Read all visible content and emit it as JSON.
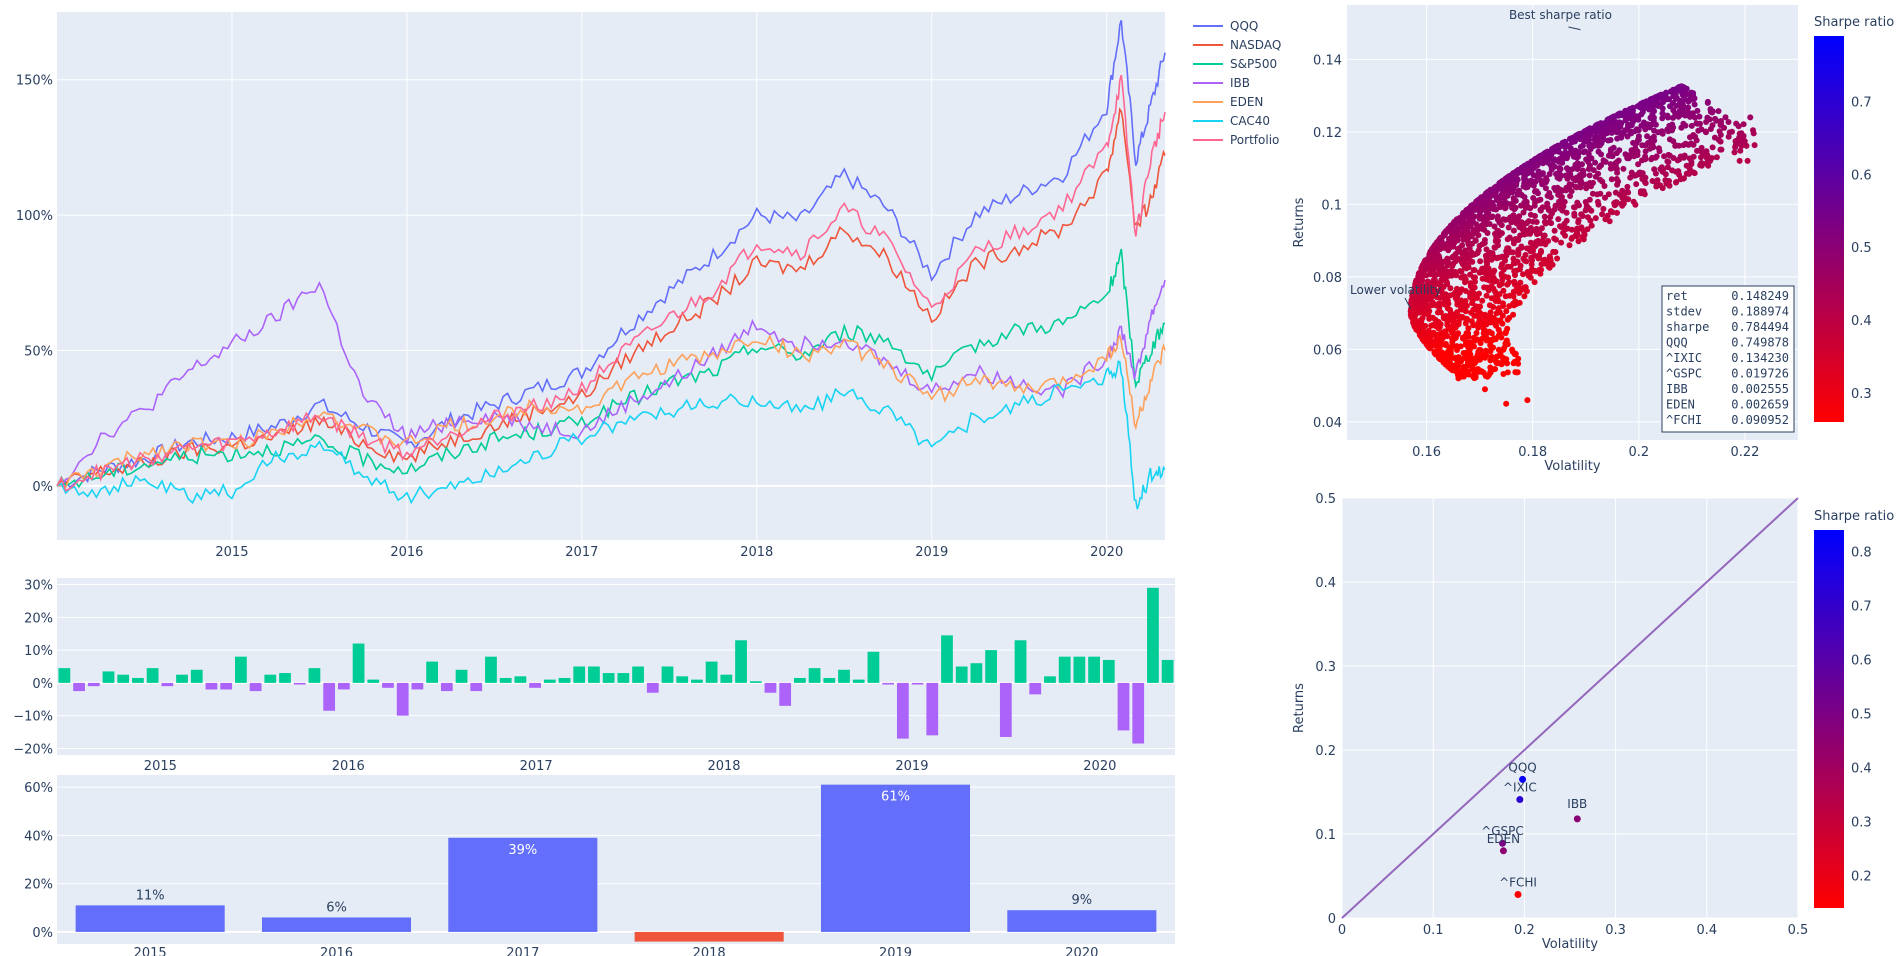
{
  "chart_data": [
    {
      "type": "line",
      "xlim": [
        "2014-01",
        "2020-05"
      ],
      "ylim": [
        -20,
        175
      ],
      "x_ticks": [
        "2015",
        "2016",
        "2017",
        "2018",
        "2019",
        "2020"
      ],
      "y_ticks": [
        0,
        50,
        100,
        150
      ],
      "y_tick_labels": [
        "0%",
        "50%",
        "100%",
        "150%"
      ],
      "grid": true,
      "legend_position": "top-right",
      "x": [
        "2014-01",
        "2014-04",
        "2014-07",
        "2014-10",
        "2015-01",
        "2015-04",
        "2015-07",
        "2015-10",
        "2016-01",
        "2016-04",
        "2016-07",
        "2016-10",
        "2017-01",
        "2017-04",
        "2017-07",
        "2017-10",
        "2018-01",
        "2018-04",
        "2018-07",
        "2018-10",
        "2019-01",
        "2019-04",
        "2019-07",
        "2019-10",
        "2020-01",
        "2020-02",
        "2020-03",
        "2020-04",
        "2020-05"
      ],
      "series": [
        {
          "name": "QQQ",
          "color": "#636efa",
          "values": [
            0,
            6,
            10,
            16,
            18,
            22,
            30,
            22,
            15,
            24,
            30,
            36,
            42,
            58,
            72,
            85,
            100,
            98,
            115,
            102,
            78,
            100,
            108,
            115,
            140,
            172,
            120,
            140,
            160
          ]
        },
        {
          "name": "NASDAQ",
          "color": "#ef553b",
          "values": [
            0,
            5,
            8,
            13,
            15,
            18,
            24,
            16,
            10,
            17,
            22,
            28,
            33,
            47,
            58,
            68,
            82,
            80,
            95,
            84,
            62,
            82,
            88,
            95,
            115,
            140,
            95,
            105,
            122
          ]
        },
        {
          "name": "S&P500",
          "color": "#00cc96",
          "values": [
            0,
            4,
            8,
            11,
            12,
            14,
            16,
            10,
            6,
            12,
            17,
            20,
            24,
            31,
            38,
            42,
            52,
            48,
            57,
            54,
            40,
            52,
            58,
            60,
            70,
            85,
            38,
            50,
            60
          ]
        },
        {
          "name": "IBB",
          "color": "#ab63fa",
          "values": [
            0,
            18,
            28,
            42,
            52,
            62,
            75,
            33,
            18,
            24,
            26,
            22,
            20,
            30,
            38,
            48,
            60,
            52,
            55,
            45,
            35,
            42,
            38,
            35,
            48,
            58,
            40,
            62,
            76
          ]
        },
        {
          "name": "EDEN",
          "color": "#ffa15a",
          "values": [
            0,
            6,
            12,
            16,
            15,
            20,
            28,
            20,
            15,
            22,
            25,
            30,
            28,
            38,
            45,
            48,
            55,
            48,
            52,
            45,
            32,
            40,
            35,
            38,
            48,
            54,
            22,
            38,
            50
          ]
        },
        {
          "name": "CAC40",
          "color": "#19d3f3",
          "values": [
            0,
            -2,
            2,
            -4,
            -2,
            10,
            15,
            4,
            -4,
            0,
            5,
            12,
            18,
            24,
            28,
            30,
            32,
            28,
            34,
            28,
            14,
            25,
            30,
            35,
            40,
            44,
            -8,
            4,
            6
          ]
        },
        {
          "name": "Portfolio",
          "color": "#ff6692",
          "values": [
            0,
            5,
            10,
            14,
            16,
            20,
            26,
            18,
            12,
            20,
            25,
            30,
            36,
            50,
            62,
            72,
            90,
            86,
            102,
            90,
            65,
            86,
            94,
            103,
            125,
            150,
            92,
            120,
            138
          ]
        }
      ]
    },
    {
      "type": "bar",
      "ylim": [
        -22,
        32
      ],
      "y_ticks": [
        -20,
        -10,
        0,
        10,
        20,
        30
      ],
      "y_tick_labels": [
        "−20%",
        "−10%",
        "0%",
        "10%",
        "20%",
        "30%"
      ],
      "x_ticks": [
        "2015",
        "2016",
        "2017",
        "2018",
        "2019",
        "2020"
      ],
      "positive_color": "#00cc96",
      "negative_color": "#ab63fa",
      "values": [
        4.5,
        -2.5,
        -1,
        3.5,
        2.5,
        1.5,
        4.5,
        -1,
        2.5,
        4,
        -2,
        -2,
        8,
        -2.5,
        2.5,
        3,
        -0.5,
        4.5,
        -8.5,
        -2,
        12,
        1,
        -1.5,
        -10,
        -2,
        6.5,
        -2.5,
        4,
        -2.5,
        8,
        1.5,
        2,
        -1.5,
        1,
        1.5,
        5,
        5,
        3,
        3,
        5,
        -3,
        5,
        2,
        1,
        6.5,
        2.5,
        13,
        0.5,
        -3,
        -7,
        1.5,
        4.5,
        1.5,
        4,
        1,
        9.5,
        -0.5,
        -17,
        -0.5,
        -16,
        14.5,
        5,
        6,
        10,
        -16.5,
        13,
        -3.5,
        2,
        8,
        8,
        8,
        7,
        -14.5,
        -18.5,
        29,
        7
      ]
    },
    {
      "type": "bar",
      "ylim": [
        -5,
        65
      ],
      "y_ticks": [
        0,
        20,
        40,
        60
      ],
      "y_tick_labels": [
        "0%",
        "20%",
        "40%",
        "60%"
      ],
      "categories": [
        "2015",
        "2016",
        "2017",
        "2018",
        "2019",
        "2020"
      ],
      "values": [
        11,
        6,
        39,
        -4,
        61,
        9
      ],
      "labels": [
        "11%",
        "6%",
        "39%",
        "",
        "61%",
        "9%"
      ],
      "positive_color": "#636efa",
      "negative_color": "#ef553b"
    },
    {
      "type": "scatter",
      "xlabel": "Volatility",
      "ylabel": "Returns",
      "xlim": [
        0.145,
        0.23
      ],
      "ylim": [
        0.035,
        0.155
      ],
      "x_ticks": [
        0.16,
        0.18,
        0.2,
        0.22
      ],
      "y_ticks": [
        0.04,
        0.06,
        0.08,
        0.1,
        0.12,
        0.14
      ],
      "x_tick_labels": [
        "0.16",
        "0.18",
        "0.2",
        "0.22"
      ],
      "y_tick_labels": [
        "0.04",
        "0.06",
        "0.08",
        "0.1",
        "0.12",
        "0.14"
      ],
      "colorbar_title": "Sharpe ratio",
      "colorbar_range": [
        0.26,
        0.79
      ],
      "colorbar_ticks": [
        "0.3",
        "0.4",
        "0.5",
        "0.6",
        "0.7"
      ],
      "colorbar_tick_values": [
        0.3,
        0.4,
        0.5,
        0.6,
        0.7
      ],
      "colorscale": [
        "#ff0000",
        "#0000ff"
      ],
      "annotations": [
        {
          "text": "Best sharpe ratio",
          "x": 0.189,
          "y": 0.1482
        },
        {
          "text": "Lower volatility",
          "x": 0.157,
          "y": 0.0712
        }
      ],
      "stats": [
        {
          "name": "ret",
          "value": "0.148249"
        },
        {
          "name": "stdev",
          "value": "0.188974"
        },
        {
          "name": "sharpe",
          "value": "0.784494"
        },
        {
          "name": "QQQ",
          "value": "0.749878"
        },
        {
          "name": "^IXIC",
          "value": "0.134230"
        },
        {
          "name": "^GSPC",
          "value": "0.019726"
        },
        {
          "name": "IBB",
          "value": "0.002555"
        },
        {
          "name": "EDEN",
          "value": "0.002659"
        },
        {
          "name": "^FCHI",
          "value": "0.090952"
        }
      ]
    },
    {
      "type": "scatter",
      "xlabel": "Volatility",
      "ylabel": "Returns",
      "xlim": [
        0,
        0.5
      ],
      "ylim": [
        0,
        0.5
      ],
      "x_ticks": [
        0,
        0.1,
        0.2,
        0.3,
        0.4,
        0.5
      ],
      "y_ticks": [
        0,
        0.1,
        0.2,
        0.3,
        0.4,
        0.5
      ],
      "x_tick_labels": [
        "0",
        "0.1",
        "0.2",
        "0.3",
        "0.4",
        "0.5"
      ],
      "y_tick_labels": [
        "0",
        "0.1",
        "0.2",
        "0.3",
        "0.4",
        "0.5"
      ],
      "colorbar_title": "Sharpe ratio",
      "colorbar_range": [
        0.14,
        0.84
      ],
      "colorbar_ticks": [
        "0.2",
        "0.3",
        "0.4",
        "0.5",
        "0.6",
        "0.7",
        "0.8"
      ],
      "colorbar_tick_values": [
        0.2,
        0.3,
        0.4,
        0.5,
        0.6,
        0.7,
        0.8
      ],
      "diagonal_color": "#9467bd",
      "points": [
        {
          "name": "QQQ",
          "x": 0.198,
          "y": 0.165,
          "sharpe": 0.82
        },
        {
          "name": "^IXIC",
          "x": 0.195,
          "y": 0.141,
          "sharpe": 0.72
        },
        {
          "name": "IBB",
          "x": 0.258,
          "y": 0.118,
          "sharpe": 0.46
        },
        {
          "name": "^GSPC",
          "x": 0.176,
          "y": 0.089,
          "sharpe": 0.5
        },
        {
          "name": "EDEN",
          "x": 0.177,
          "y": 0.08,
          "sharpe": 0.45
        },
        {
          "name": "^FCHI",
          "x": 0.193,
          "y": 0.028,
          "sharpe": 0.14
        }
      ]
    }
  ]
}
